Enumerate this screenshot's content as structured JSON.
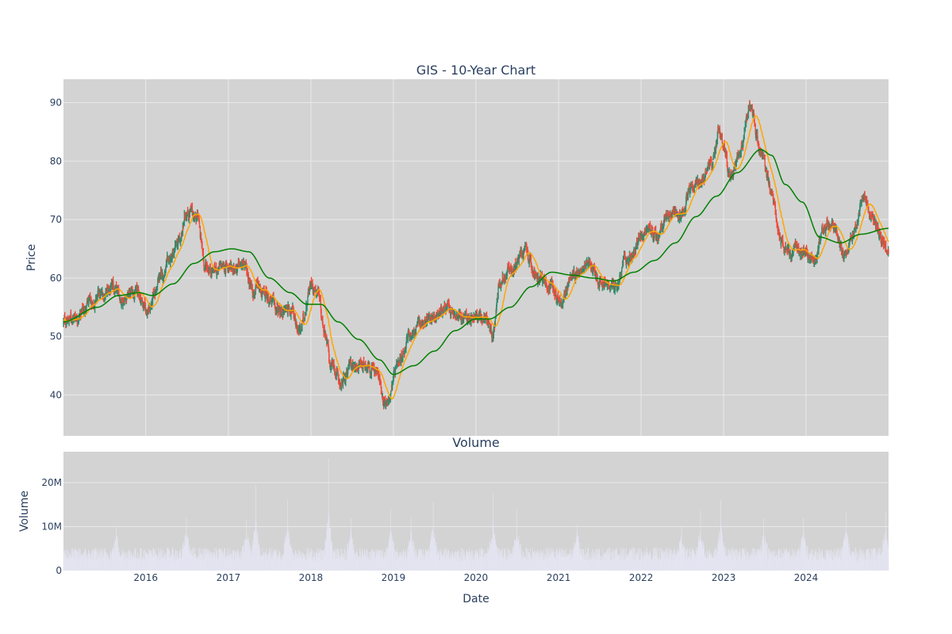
{
  "chart_data": [
    {
      "type": "candlestick",
      "title": "GIS - 10-Year Chart",
      "xlabel": "",
      "ylabel": "Price",
      "ylim": [
        33,
        94
      ],
      "x_range": [
        "2015-01-02",
        "2024-12-31"
      ],
      "x_ticks": [
        "2016",
        "2017",
        "2018",
        "2019",
        "2020",
        "2021",
        "2022",
        "2023",
        "2024"
      ],
      "y_ticks": [
        "40",
        "50",
        "60",
        "70",
        "80",
        "90"
      ],
      "grid": true,
      "colors": {
        "up": "#2e8b6b",
        "down": "#ef4a3a",
        "ma_short": "#ffa500",
        "ma_long": "#008000",
        "plot_bg": "#d3d3d3",
        "grid": "#e9e9e9"
      },
      "price_keypoints": [
        [
          "2015-01-02",
          52.5
        ],
        [
          "2015-03-01",
          53.5
        ],
        [
          "2015-05-01",
          55.5
        ],
        [
          "2015-06-15",
          57
        ],
        [
          "2015-08-10",
          58
        ],
        [
          "2015-09-15",
          56.5
        ],
        [
          "2015-11-15",
          58
        ],
        [
          "2016-01-10",
          54.5
        ],
        [
          "2016-03-15",
          60.5
        ],
        [
          "2016-04-20",
          63
        ],
        [
          "2016-06-01",
          66.5
        ],
        [
          "2016-07-01",
          71.5
        ],
        [
          "2016-08-15",
          70.5
        ],
        [
          "2016-09-20",
          62
        ],
        [
          "2016-11-01",
          61.5
        ],
        [
          "2017-01-01",
          62
        ],
        [
          "2017-03-01",
          62
        ],
        [
          "2017-05-01",
          58
        ],
        [
          "2017-07-01",
          56.5
        ],
        [
          "2017-08-15",
          54
        ],
        [
          "2017-10-01",
          55
        ],
        [
          "2017-11-15",
          51
        ],
        [
          "2018-01-01",
          59
        ],
        [
          "2018-02-01",
          58
        ],
        [
          "2018-03-01",
          51.5
        ],
        [
          "2018-04-01",
          45
        ],
        [
          "2018-05-15",
          42
        ],
        [
          "2018-07-01",
          45
        ],
        [
          "2018-09-01",
          45.5
        ],
        [
          "2018-10-15",
          44
        ],
        [
          "2018-12-01",
          38.5
        ],
        [
          "2019-01-15",
          44
        ],
        [
          "2019-03-15",
          50.5
        ],
        [
          "2019-05-15",
          52.5
        ],
        [
          "2019-07-01",
          53.5
        ],
        [
          "2019-08-15",
          55
        ],
        [
          "2019-10-15",
          53
        ],
        [
          "2019-12-15",
          53.5
        ],
        [
          "2020-02-15",
          53
        ],
        [
          "2020-03-15",
          50
        ],
        [
          "2020-04-15",
          60
        ],
        [
          "2020-06-15",
          61.5
        ],
        [
          "2020-08-01",
          64.5
        ],
        [
          "2020-09-15",
          61
        ],
        [
          "2020-11-01",
          59.5
        ],
        [
          "2020-12-01",
          58.5
        ],
        [
          "2021-01-15",
          56
        ],
        [
          "2021-03-01",
          60
        ],
        [
          "2021-05-01",
          63
        ],
        [
          "2021-07-01",
          60
        ],
        [
          "2021-09-01",
          58
        ],
        [
          "2021-11-01",
          63
        ],
        [
          "2022-01-01",
          66.5
        ],
        [
          "2022-02-01",
          68.5
        ],
        [
          "2022-03-15",
          67
        ],
        [
          "2022-05-01",
          71
        ],
        [
          "2022-06-15",
          70
        ],
        [
          "2022-08-15",
          76
        ],
        [
          "2022-10-01",
          77
        ],
        [
          "2022-11-15",
          80
        ],
        [
          "2022-12-15",
          85
        ],
        [
          "2023-02-01",
          78
        ],
        [
          "2023-03-15",
          82
        ],
        [
          "2023-05-01",
          89.5
        ],
        [
          "2023-06-15",
          82
        ],
        [
          "2023-08-01",
          74
        ],
        [
          "2023-09-15",
          66
        ],
        [
          "2023-11-01",
          64.5
        ],
        [
          "2024-01-01",
          64.5
        ],
        [
          "2024-02-15",
          63
        ],
        [
          "2024-03-15",
          68.5
        ],
        [
          "2024-05-01",
          69.5
        ],
        [
          "2024-06-15",
          64
        ],
        [
          "2024-08-01",
          68
        ],
        [
          "2024-09-15",
          74.5
        ],
        [
          "2024-10-15",
          71
        ],
        [
          "2024-12-31",
          64.5
        ]
      ],
      "series": [
        {
          "type": "line",
          "values_keypoints": [
            [
              "2015-01-02",
              52.5
            ],
            [
              "2015-06-01",
              55
            ],
            [
              "2015-09-01",
              57
            ],
            [
              "2015-12-01",
              57.5
            ],
            [
              "2016-02-01",
              57
            ],
            [
              "2016-05-01",
              59
            ],
            [
              "2016-08-01",
              62.5
            ],
            [
              "2016-11-01",
              64.5
            ],
            [
              "2017-01-15",
              65
            ],
            [
              "2017-04-01",
              64.5
            ],
            [
              "2017-07-01",
              60
            ],
            [
              "2017-10-01",
              57.5
            ],
            [
              "2017-12-15",
              55.5
            ],
            [
              "2018-02-15",
              55.5
            ],
            [
              "2018-05-01",
              52.5
            ],
            [
              "2018-08-01",
              49.5
            ],
            [
              "2018-11-01",
              46
            ],
            [
              "2019-01-01",
              43.5
            ],
            [
              "2019-04-01",
              45
            ],
            [
              "2019-07-01",
              47.5
            ],
            [
              "2019-10-01",
              51
            ],
            [
              "2019-12-31",
              53
            ],
            [
              "2020-03-01",
              53
            ],
            [
              "2020-06-01",
              55
            ],
            [
              "2020-09-01",
              58.5
            ],
            [
              "2020-12-01",
              61
            ],
            [
              "2021-03-01",
              60.5
            ],
            [
              "2021-06-01",
              60
            ],
            [
              "2021-09-01",
              59.5
            ],
            [
              "2021-12-01",
              61
            ],
            [
              "2022-03-01",
              63
            ],
            [
              "2022-06-01",
              66
            ],
            [
              "2022-09-01",
              70.5
            ],
            [
              "2022-12-01",
              74
            ],
            [
              "2023-03-01",
              78
            ],
            [
              "2023-06-15",
              82
            ],
            [
              "2023-08-01",
              81
            ],
            [
              "2023-10-01",
              76
            ],
            [
              "2023-12-15",
              73
            ],
            [
              "2024-03-01",
              67
            ],
            [
              "2024-06-01",
              66
            ],
            [
              "2024-09-01",
              67.5
            ],
            [
              "2024-12-31",
              68.5
            ]
          ]
        },
        {
          "type": "line",
          "smoothing_window_days": 50
        }
      ]
    },
    {
      "type": "bar",
      "title": "Volume",
      "xlabel": "Date",
      "ylabel": "Volume",
      "ylim": [
        0,
        27000000
      ],
      "y_ticks": [
        "0",
        "10M",
        "20M"
      ],
      "x_ticks": [
        "2016",
        "2017",
        "2018",
        "2019",
        "2020",
        "2021",
        "2022",
        "2023",
        "2024"
      ],
      "base_volume_m": 3.5,
      "bar_color": "#e6e6f5",
      "spikes_m": [
        [
          "2015-08-24",
          10
        ],
        [
          "2016-06-29",
          12
        ],
        [
          "2017-03-22",
          11.5
        ],
        [
          "2017-05-02",
          19.5
        ],
        [
          "2017-09-20",
          16
        ],
        [
          "2018-03-21",
          25.5
        ],
        [
          "2018-06-27",
          12
        ],
        [
          "2018-12-19",
          14
        ],
        [
          "2019-03-20",
          12
        ],
        [
          "2019-06-26",
          15.5
        ],
        [
          "2020-03-18",
          17.5
        ],
        [
          "2020-06-30",
          14
        ],
        [
          "2021-03-24",
          10.5
        ],
        [
          "2022-06-29",
          10
        ],
        [
          "2022-09-21",
          14
        ],
        [
          "2022-12-20",
          16
        ],
        [
          "2023-06-28",
          12
        ],
        [
          "2023-12-20",
          12
        ],
        [
          "2024-06-26",
          13.5
        ],
        [
          "2024-12-18",
          13.5
        ]
      ]
    }
  ]
}
